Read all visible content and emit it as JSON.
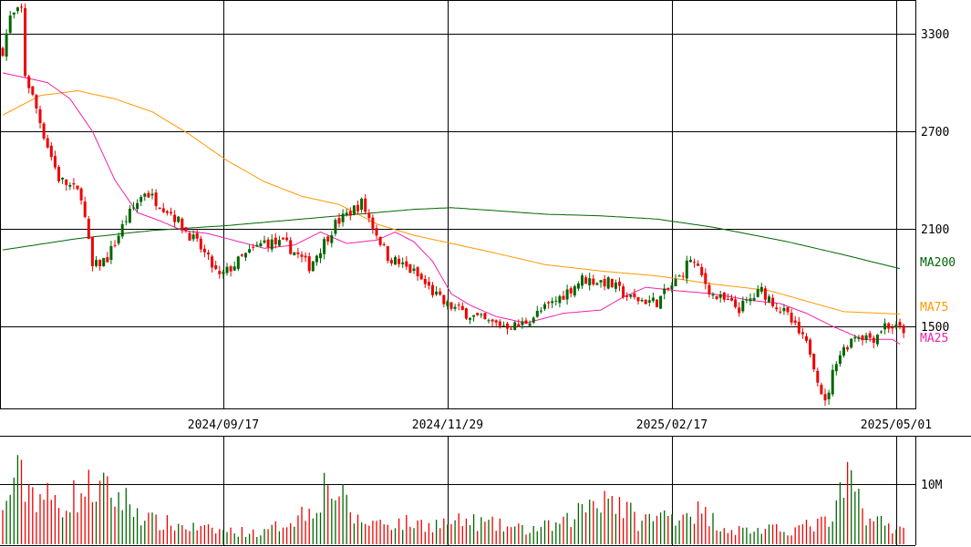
{
  "chart_data": {
    "type": "candlestick",
    "price_axis": {
      "range": [
        1000,
        3500
      ],
      "ticks": [
        {
          "value": 3300,
          "label": "3300"
        },
        {
          "value": 2700,
          "label": "2700"
        },
        {
          "value": 2100,
          "label": "2100"
        },
        {
          "value": 1500,
          "label": "1500"
        }
      ]
    },
    "date_axis": {
      "ticks": [
        {
          "label": "2024/09/17",
          "index": 59
        },
        {
          "label": "2024/11/29",
          "index": 119
        },
        {
          "label": "2025/02/17",
          "index": 179
        },
        {
          "label": "2025/05/01",
          "index": 239
        }
      ]
    },
    "volume_axis": {
      "ticks": [
        {
          "value": 10000000,
          "label": "10M"
        }
      ]
    },
    "moving_averages": [
      {
        "name": "MA200",
        "color": "#006600",
        "values": [
          [
            0,
            1970
          ],
          [
            20,
            2040
          ],
          [
            40,
            2090
          ],
          [
            60,
            2120
          ],
          [
            80,
            2160
          ],
          [
            100,
            2200
          ],
          [
            110,
            2220
          ],
          [
            120,
            2230
          ],
          [
            130,
            2215
          ],
          [
            145,
            2190
          ],
          [
            160,
            2180
          ],
          [
            175,
            2160
          ],
          [
            190,
            2110
          ],
          [
            210,
            2020
          ],
          [
            225,
            1940
          ],
          [
            240,
            1855
          ]
        ]
      },
      {
        "name": "MA75",
        "color": "#ff9900",
        "values": [
          [
            0,
            2800
          ],
          [
            10,
            2920
          ],
          [
            20,
            2950
          ],
          [
            30,
            2900
          ],
          [
            40,
            2820
          ],
          [
            50,
            2680
          ],
          [
            60,
            2520
          ],
          [
            70,
            2390
          ],
          [
            80,
            2300
          ],
          [
            90,
            2250
          ],
          [
            100,
            2130
          ],
          [
            110,
            2060
          ],
          [
            120,
            2010
          ],
          [
            130,
            1960
          ],
          [
            145,
            1880
          ],
          [
            160,
            1840
          ],
          [
            175,
            1810
          ],
          [
            190,
            1760
          ],
          [
            205,
            1720
          ],
          [
            225,
            1590
          ],
          [
            240,
            1575
          ]
        ]
      },
      {
        "name": "MA25",
        "color": "#ee22aa",
        "values": [
          [
            0,
            3060
          ],
          [
            6,
            3030
          ],
          [
            12,
            3000
          ],
          [
            18,
            2900
          ],
          [
            24,
            2700
          ],
          [
            30,
            2400
          ],
          [
            36,
            2200
          ],
          [
            42,
            2150
          ],
          [
            48,
            2090
          ],
          [
            55,
            2070
          ],
          [
            60,
            2040
          ],
          [
            70,
            1980
          ],
          [
            78,
            2000
          ],
          [
            85,
            2080
          ],
          [
            92,
            2010
          ],
          [
            100,
            2030
          ],
          [
            105,
            2080
          ],
          [
            110,
            2020
          ],
          [
            115,
            1900
          ],
          [
            120,
            1700
          ],
          [
            125,
            1630
          ],
          [
            132,
            1560
          ],
          [
            140,
            1520
          ],
          [
            150,
            1580
          ],
          [
            160,
            1600
          ],
          [
            166,
            1680
          ],
          [
            172,
            1740
          ],
          [
            180,
            1720
          ],
          [
            190,
            1700
          ],
          [
            200,
            1660
          ],
          [
            208,
            1640
          ],
          [
            215,
            1580
          ],
          [
            222,
            1500
          ],
          [
            230,
            1420
          ],
          [
            238,
            1420
          ],
          [
            240,
            1390
          ]
        ]
      }
    ],
    "ohlc_anchors": [
      [
        0,
        3200
      ],
      [
        2,
        3400
      ],
      [
        5,
        3450
      ],
      [
        6,
        3050
      ],
      [
        9,
        2840
      ],
      [
        11,
        2680
      ],
      [
        15,
        2410
      ],
      [
        21,
        2310
      ],
      [
        24,
        1860
      ],
      [
        28,
        1920
      ],
      [
        33,
        2160
      ],
      [
        38,
        2330
      ],
      [
        45,
        2200
      ],
      [
        53,
        1980
      ],
      [
        58,
        1800
      ],
      [
        64,
        1920
      ],
      [
        70,
        2020
      ],
      [
        76,
        2000
      ],
      [
        82,
        1870
      ],
      [
        89,
        2130
      ],
      [
        96,
        2260
      ],
      [
        103,
        1930
      ],
      [
        110,
        1830
      ],
      [
        118,
        1640
      ],
      [
        125,
        1570
      ],
      [
        130,
        1520
      ],
      [
        138,
        1500
      ],
      [
        147,
        1640
      ],
      [
        155,
        1790
      ],
      [
        162,
        1770
      ],
      [
        168,
        1670
      ],
      [
        175,
        1650
      ],
      [
        181,
        1800
      ],
      [
        184,
        1920
      ],
      [
        190,
        1690
      ],
      [
        197,
        1610
      ],
      [
        203,
        1720
      ],
      [
        210,
        1560
      ],
      [
        216,
        1350
      ],
      [
        220,
        1020
      ],
      [
        223,
        1300
      ],
      [
        228,
        1450
      ],
      [
        233,
        1430
      ],
      [
        236,
        1510
      ],
      [
        240,
        1480
      ]
    ],
    "volume_anchors": [
      [
        0,
        5000000
      ],
      [
        3,
        12000000
      ],
      [
        9,
        9000000
      ],
      [
        15,
        7000000
      ],
      [
        24,
        10000000
      ],
      [
        32,
        8000000
      ],
      [
        40,
        4000000
      ],
      [
        55,
        2500000
      ],
      [
        70,
        2000000
      ],
      [
        82,
        6000000
      ],
      [
        87,
        11000000
      ],
      [
        95,
        4000000
      ],
      [
        115,
        3500000
      ],
      [
        125,
        4000000
      ],
      [
        140,
        2500000
      ],
      [
        150,
        3500000
      ],
      [
        158,
        8000000
      ],
      [
        162,
        9000000
      ],
      [
        170,
        4000000
      ],
      [
        185,
        6000000
      ],
      [
        195,
        2500000
      ],
      [
        210,
        2500000
      ],
      [
        222,
        4000000
      ],
      [
        226,
        11500000
      ],
      [
        232,
        4500000
      ],
      [
        240,
        2500000
      ]
    ],
    "up_color": "#006600",
    "down_color": "#ee0000"
  },
  "labels": {
    "ma200": "MA200",
    "ma75": "MA75",
    "ma25": "MA25"
  }
}
